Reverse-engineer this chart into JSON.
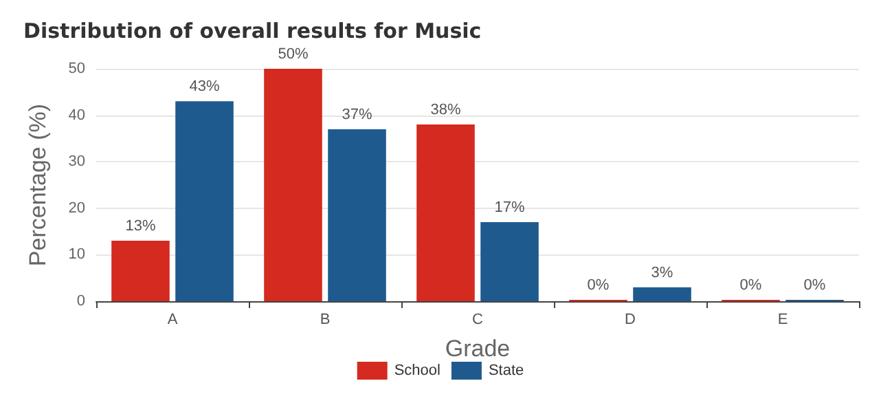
{
  "chart_data": {
    "type": "bar",
    "title": "Distribution of overall results for Music",
    "xlabel": "Grade",
    "ylabel": "Percentage (%)",
    "categories": [
      "A",
      "B",
      "C",
      "D",
      "E"
    ],
    "series": [
      {
        "name": "School",
        "color": "#d42a1f",
        "values": [
          13,
          50,
          38,
          0,
          0
        ],
        "value_labels": [
          "13%",
          "50%",
          "38%",
          "0%",
          "0%"
        ]
      },
      {
        "name": "State",
        "color": "#1f5a8e",
        "values": [
          43,
          37,
          17,
          3,
          0
        ],
        "value_labels": [
          "43%",
          "37%",
          "17%",
          "3%",
          "0%"
        ]
      }
    ],
    "ylim": [
      0,
      50
    ],
    "yticks": [
      0,
      10,
      20,
      30,
      40,
      50
    ],
    "grid": "y",
    "legend": "bottom"
  }
}
